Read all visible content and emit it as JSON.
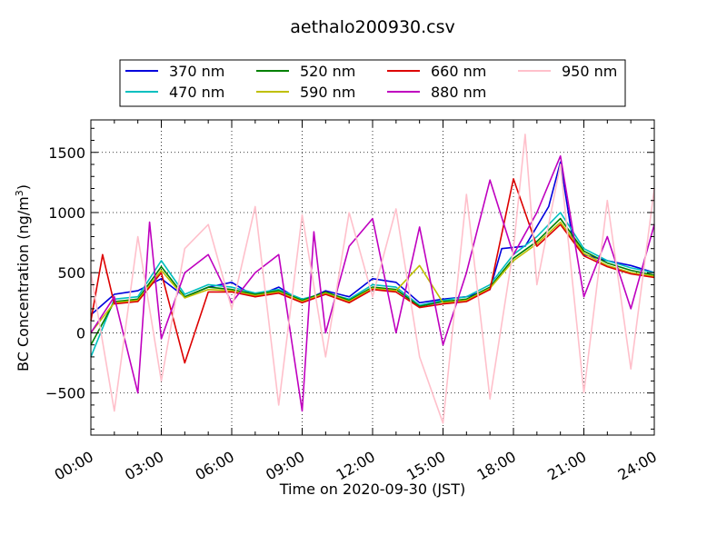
{
  "chart_data": {
    "type": "line",
    "title": "aethalo200930.csv",
    "xlabel": "Time on 2020-09-30 (JST)",
    "ylabel_main": "BC Concentration (ng/m",
    "ylabel_sup": "3",
    "ylabel_tail": ")",
    "xlim": [
      "00:00",
      "24:00"
    ],
    "x_ticks": [
      "00:00",
      "03:00",
      "06:00",
      "09:00",
      "12:00",
      "15:00",
      "18:00",
      "21:00",
      "24:00"
    ],
    "ylim": [
      -850,
      1770
    ],
    "y_ticks": [
      "−500",
      "0",
      "500",
      "1000",
      "1500"
    ],
    "grid": true,
    "legend_position": "top-center",
    "series": [
      {
        "name": "370 nm",
        "color": "#0000dd",
        "points": [
          [
            "00:00",
            150
          ],
          [
            "01:00",
            320
          ],
          [
            "02:00",
            350
          ],
          [
            "03:00",
            450
          ],
          [
            "04:00",
            300
          ],
          [
            "05:00",
            380
          ],
          [
            "06:00",
            420
          ],
          [
            "07:00",
            300
          ],
          [
            "08:00",
            380
          ],
          [
            "09:00",
            260
          ],
          [
            "10:00",
            350
          ],
          [
            "11:00",
            300
          ],
          [
            "12:00",
            450
          ],
          [
            "13:00",
            420
          ],
          [
            "14:00",
            250
          ],
          [
            "15:00",
            280
          ],
          [
            "16:00",
            300
          ],
          [
            "17:00",
            360
          ],
          [
            "17:30",
            700
          ],
          [
            "18:30",
            720
          ],
          [
            "19:30",
            1050
          ],
          [
            "20:00",
            1420
          ],
          [
            "20:30",
            800
          ],
          [
            "21:00",
            650
          ],
          [
            "22:00",
            600
          ],
          [
            "23:00",
            560
          ],
          [
            "24:00",
            500
          ]
        ]
      },
      {
        "name": "470 nm",
        "color": "#00bfbf",
        "points": [
          [
            "00:00",
            -200
          ],
          [
            "01:00",
            280
          ],
          [
            "02:00",
            300
          ],
          [
            "03:00",
            600
          ],
          [
            "04:00",
            320
          ],
          [
            "05:00",
            400
          ],
          [
            "06:00",
            380
          ],
          [
            "07:00",
            330
          ],
          [
            "08:00",
            360
          ],
          [
            "09:00",
            280
          ],
          [
            "10:00",
            330
          ],
          [
            "11:00",
            280
          ],
          [
            "12:00",
            400
          ],
          [
            "13:00",
            380
          ],
          [
            "14:00",
            230
          ],
          [
            "15:00",
            270
          ],
          [
            "16:00",
            300
          ],
          [
            "17:00",
            400
          ],
          [
            "18:00",
            650
          ],
          [
            "19:00",
            800
          ],
          [
            "20:00",
            1000
          ],
          [
            "21:00",
            700
          ],
          [
            "22:00",
            600
          ],
          [
            "23:00",
            540
          ],
          [
            "24:00",
            500
          ]
        ]
      },
      {
        "name": "520 nm",
        "color": "#008000",
        "points": [
          [
            "00:00",
            -100
          ],
          [
            "01:00",
            260
          ],
          [
            "02:00",
            280
          ],
          [
            "03:00",
            550
          ],
          [
            "04:00",
            300
          ],
          [
            "05:00",
            380
          ],
          [
            "06:00",
            360
          ],
          [
            "07:00",
            320
          ],
          [
            "08:00",
            350
          ],
          [
            "09:00",
            270
          ],
          [
            "10:00",
            340
          ],
          [
            "11:00",
            270
          ],
          [
            "12:00",
            380
          ],
          [
            "13:00",
            360
          ],
          [
            "14:00",
            220
          ],
          [
            "15:00",
            260
          ],
          [
            "16:00",
            280
          ],
          [
            "17:00",
            380
          ],
          [
            "18:00",
            620
          ],
          [
            "19:00",
            760
          ],
          [
            "20:00",
            950
          ],
          [
            "21:00",
            680
          ],
          [
            "22:00",
            580
          ],
          [
            "23:00",
            520
          ],
          [
            "24:00",
            480
          ]
        ]
      },
      {
        "name": "590 nm",
        "color": "#bfbf00",
        "points": [
          [
            "00:00",
            0
          ],
          [
            "01:00",
            250
          ],
          [
            "02:00",
            270
          ],
          [
            "03:00",
            520
          ],
          [
            "04:00",
            290
          ],
          [
            "05:00",
            360
          ],
          [
            "06:00",
            350
          ],
          [
            "07:00",
            310
          ],
          [
            "08:00",
            340
          ],
          [
            "09:00",
            260
          ],
          [
            "10:00",
            330
          ],
          [
            "11:00",
            260
          ],
          [
            "12:00",
            370
          ],
          [
            "13:00",
            350
          ],
          [
            "14:00",
            560
          ],
          [
            "15:00",
            250
          ],
          [
            "16:00",
            270
          ],
          [
            "17:00",
            370
          ],
          [
            "18:00",
            600
          ],
          [
            "19:00",
            740
          ],
          [
            "20:00",
            920
          ],
          [
            "21:00",
            660
          ],
          [
            "22:00",
            560
          ],
          [
            "23:00",
            500
          ],
          [
            "24:00",
            470
          ]
        ]
      },
      {
        "name": "660 nm",
        "color": "#dd0000",
        "points": [
          [
            "00:00",
            100
          ],
          [
            "00:30",
            650
          ],
          [
            "01:00",
            240
          ],
          [
            "02:00",
            260
          ],
          [
            "03:00",
            500
          ],
          [
            "04:00",
            -250
          ],
          [
            "05:00",
            340
          ],
          [
            "06:00",
            340
          ],
          [
            "07:00",
            300
          ],
          [
            "08:00",
            330
          ],
          [
            "09:00",
            250
          ],
          [
            "10:00",
            320
          ],
          [
            "11:00",
            250
          ],
          [
            "12:00",
            360
          ],
          [
            "13:00",
            340
          ],
          [
            "14:00",
            210
          ],
          [
            "15:00",
            240
          ],
          [
            "16:00",
            260
          ],
          [
            "17:00",
            360
          ],
          [
            "18:00",
            1280
          ],
          [
            "19:00",
            720
          ],
          [
            "20:00",
            900
          ],
          [
            "21:00",
            640
          ],
          [
            "22:00",
            550
          ],
          [
            "23:00",
            490
          ],
          [
            "24:00",
            460
          ]
        ]
      },
      {
        "name": "880 nm",
        "color": "#bf00bf",
        "points": [
          [
            "00:00",
            0
          ],
          [
            "01:00",
            300
          ],
          [
            "02:00",
            -500
          ],
          [
            "02:30",
            920
          ],
          [
            "03:00",
            -50
          ],
          [
            "04:00",
            500
          ],
          [
            "05:00",
            650
          ],
          [
            "06:00",
            250
          ],
          [
            "07:00",
            500
          ],
          [
            "08:00",
            650
          ],
          [
            "09:00",
            -650
          ],
          [
            "09:30",
            840
          ],
          [
            "10:00",
            0
          ],
          [
            "11:00",
            720
          ],
          [
            "12:00",
            950
          ],
          [
            "13:00",
            0
          ],
          [
            "14:00",
            880
          ],
          [
            "15:00",
            -100
          ],
          [
            "16:00",
            500
          ],
          [
            "17:00",
            1270
          ],
          [
            "18:00",
            650
          ],
          [
            "19:00",
            1000
          ],
          [
            "20:00",
            1470
          ],
          [
            "21:00",
            300
          ],
          [
            "22:00",
            800
          ],
          [
            "23:00",
            200
          ],
          [
            "24:00",
            900
          ]
        ]
      },
      {
        "name": "950 nm",
        "color": "#ffc0cb",
        "points": [
          [
            "00:00",
            500
          ],
          [
            "01:00",
            -650
          ],
          [
            "02:00",
            800
          ],
          [
            "03:00",
            -400
          ],
          [
            "04:00",
            700
          ],
          [
            "05:00",
            900
          ],
          [
            "06:00",
            200
          ],
          [
            "07:00",
            1050
          ],
          [
            "08:00",
            -600
          ],
          [
            "09:00",
            980
          ],
          [
            "10:00",
            -200
          ],
          [
            "11:00",
            1000
          ],
          [
            "12:00",
            300
          ],
          [
            "13:00",
            1030
          ],
          [
            "14:00",
            -200
          ],
          [
            "15:00",
            -750
          ],
          [
            "16:00",
            1150
          ],
          [
            "17:00",
            -550
          ],
          [
            "18:00",
            700
          ],
          [
            "18:30",
            1650
          ],
          [
            "19:00",
            400
          ],
          [
            "20:00",
            1400
          ],
          [
            "21:00",
            -500
          ],
          [
            "22:00",
            1100
          ],
          [
            "23:00",
            -300
          ],
          [
            "24:00",
            1200
          ]
        ]
      }
    ]
  }
}
